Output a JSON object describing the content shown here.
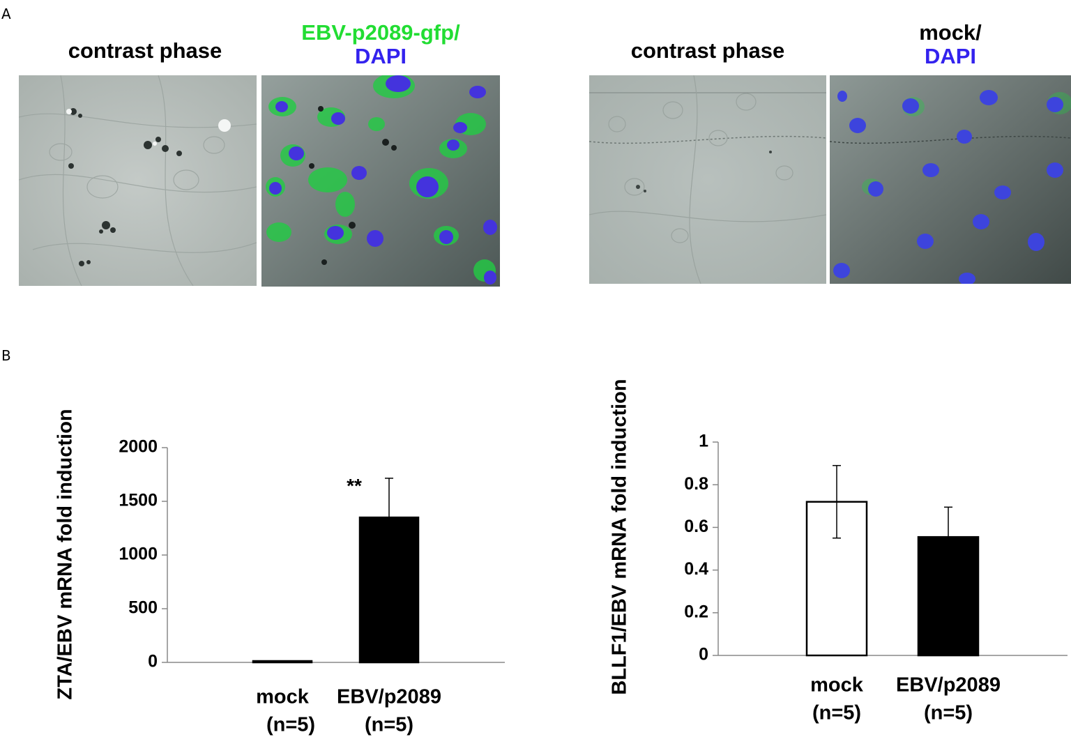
{
  "panel_a": {
    "label": "A",
    "left": {
      "caption_phase": "contrast phase",
      "caption_fluor_line1": "EBV-p2089-gfp/",
      "caption_fluor_line2": "DAPI"
    },
    "right": {
      "caption_phase": "contrast phase",
      "caption_fluor_line1": "mock/",
      "caption_fluor_line2": "DAPI"
    },
    "colors": {
      "gfp": "#22dd33",
      "dapi": "#3322ee",
      "phase_bg": "#b9c0bd"
    }
  },
  "panel_b": {
    "label": "B"
  },
  "chart_data": [
    {
      "type": "bar",
      "categories": [
        "mock",
        "EBV/p2089"
      ],
      "category_sublabels": [
        "(n=5)",
        "(n=5)"
      ],
      "values": [
        10,
        1350
      ],
      "errors": [
        0,
        365
      ],
      "bar_colors": [
        "#000000",
        "#000000"
      ],
      "annotations": [
        {
          "category": "EBV/p2089",
          "text": "**"
        }
      ],
      "ylabel": "ZTA/EBV mRNA fold induction",
      "ylim": [
        0,
        2000
      ],
      "yticks": [
        0,
        500,
        1000,
        1500,
        2000
      ],
      "ytick_labels": [
        "0",
        "500",
        "1000",
        "1500",
        "2000"
      ],
      "grid": false
    },
    {
      "type": "bar",
      "categories": [
        "mock",
        "EBV/p2089"
      ],
      "category_sublabels": [
        "(n=5)",
        "(n=5)"
      ],
      "values": [
        0.72,
        0.555
      ],
      "errors": [
        0.17,
        0.14
      ],
      "bar_colors": [
        "#ffffff",
        "#000000"
      ],
      "annotations": [],
      "ylabel": "BLLF1/EBV mRNA fold induction",
      "ylim": [
        0,
        1
      ],
      "yticks": [
        0,
        0.2,
        0.4,
        0.6,
        0.8,
        1
      ],
      "ytick_labels": [
        "0",
        "0.2",
        "0.4",
        "0.6",
        "0.8",
        "1"
      ],
      "grid": false
    }
  ]
}
